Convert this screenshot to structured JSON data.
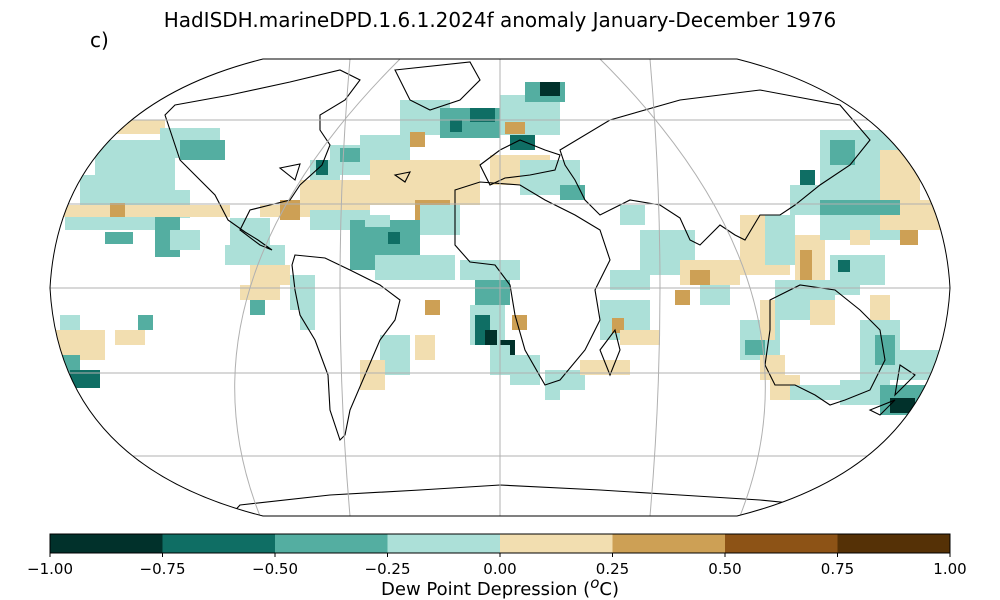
{
  "header": {
    "title": "HadISDH.marineDPD.1.6.1.2024f anomaly January-December 1976",
    "panel_label": "c)"
  },
  "colorbar": {
    "label_main": "Dew Point Depression (",
    "label_sup": "o",
    "label_unit": "C)",
    "ticks": [
      "−1.00",
      "−0.75",
      "−0.50",
      "−0.25",
      "0.00",
      "0.25",
      "0.50",
      "0.75",
      "1.00"
    ],
    "colors": [
      "#01312b",
      "#0f6e64",
      "#54aea1",
      "#ace0d8",
      "#f2deb0",
      "#cda055",
      "#8d5316",
      "#553106"
    ]
  },
  "map": {
    "projection": "robinson",
    "grid": true,
    "lon_lines": [
      -120,
      -60,
      0,
      60,
      120
    ],
    "lat_lines": [
      -60,
      -30,
      0,
      30,
      60
    ]
  }
}
